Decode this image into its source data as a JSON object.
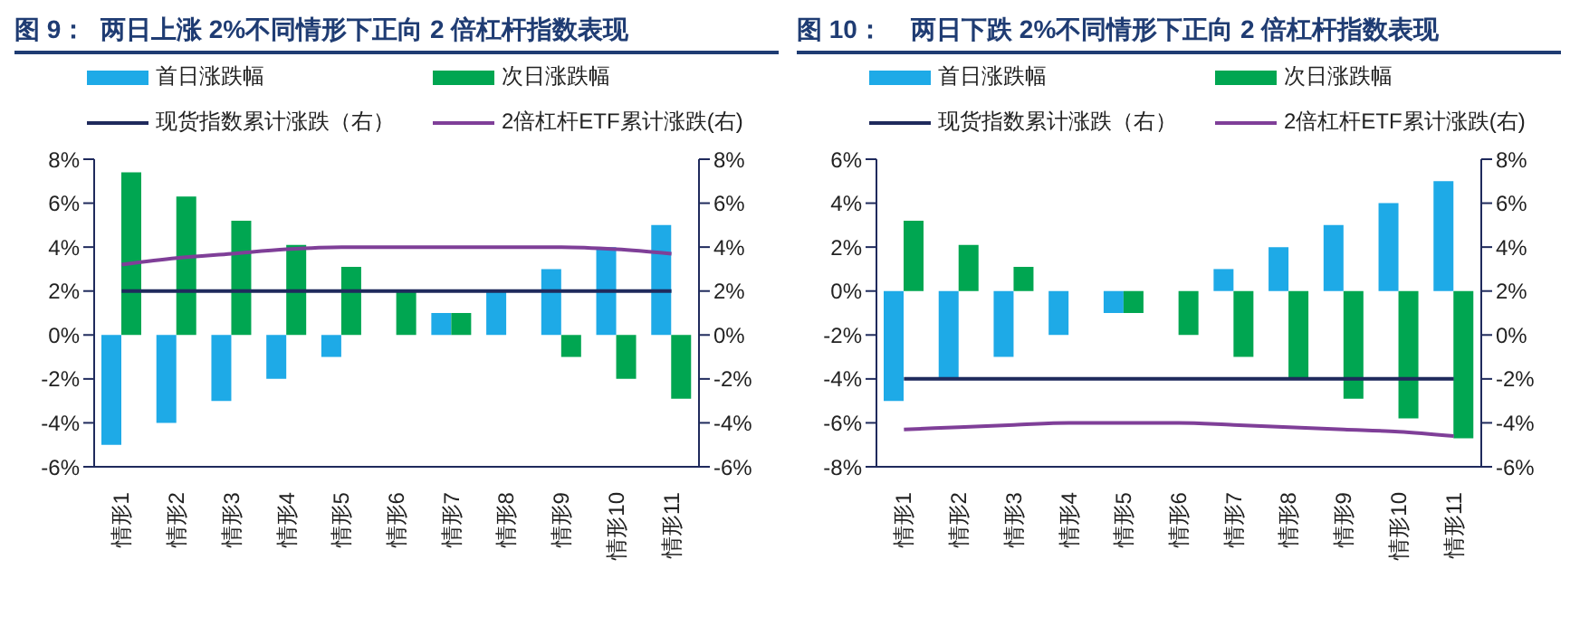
{
  "chart_data": [
    {
      "type": "bar",
      "title": "图 9：  两日上涨 2%不同情形下正向 2 倍杠杆指数表现",
      "legend": "top",
      "categories": [
        "情形1",
        "情形2",
        "情形3",
        "情形4",
        "情形5",
        "情形6",
        "情形7",
        "情形8",
        "情形9",
        "情形10",
        "情形11"
      ],
      "series": [
        {
          "name": "首日涨跌幅",
          "color": "#1eaae7",
          "values": [
            -5,
            -4,
            -3,
            -2,
            -1,
            0,
            1,
            2,
            3,
            4,
            5
          ]
        },
        {
          "name": "次日涨跌幅",
          "color": "#00a651",
          "values": [
            7.4,
            6.3,
            5.2,
            4.1,
            3.1,
            2,
            1,
            0,
            -1,
            -2,
            -2.9
          ]
        },
        {
          "name": "现货指数累计涨跌（右）",
          "type": "line",
          "axis": "y2",
          "color": "#1f2a5c",
          "values": [
            2,
            2,
            2,
            2,
            2,
            2,
            2,
            2,
            2,
            2,
            2
          ]
        },
        {
          "name": "2倍杠杆ETF累计涨跌(右)",
          "type": "line",
          "axis": "y2",
          "color": "#7f3f98",
          "values": [
            3.2,
            3.5,
            3.7,
            3.9,
            4,
            4,
            4,
            4,
            4,
            3.9,
            3.7
          ]
        }
      ],
      "ylim": [
        -6,
        8
      ],
      "yticks": [
        {
          "value": -6,
          "label": "-6%"
        },
        {
          "value": -4,
          "label": "-4%"
        },
        {
          "value": -2,
          "label": "-2%"
        },
        {
          "value": 0,
          "label": "0%"
        },
        {
          "value": 2,
          "label": "2%"
        },
        {
          "value": 4,
          "label": "4%"
        },
        {
          "value": 6,
          "label": "6%"
        },
        {
          "value": 8,
          "label": "8%"
        }
      ],
      "y2lim": [
        -6,
        8
      ],
      "y2ticks": [
        {
          "value": -6,
          "label": "-6%"
        },
        {
          "value": -4,
          "label": "-4%"
        },
        {
          "value": -2,
          "label": "-2%"
        },
        {
          "value": 0,
          "label": "0%"
        },
        {
          "value": 2,
          "label": "2%"
        },
        {
          "value": 4,
          "label": "4%"
        },
        {
          "value": 6,
          "label": "6%"
        },
        {
          "value": 8,
          "label": "8%"
        }
      ]
    },
    {
      "type": "bar",
      "title": "图 10：    两日下跌 2%不同情形下正向 2 倍杠杆指数表现",
      "legend": "top",
      "categories": [
        "情形1",
        "情形2",
        "情形3",
        "情形4",
        "情形5",
        "情形6",
        "情形7",
        "情形8",
        "情形9",
        "情形10",
        "情形11"
      ],
      "series": [
        {
          "name": "首日涨跌幅",
          "color": "#1eaae7",
          "values": [
            -5,
            -4,
            -3,
            -2,
            -1,
            0,
            1,
            2,
            3,
            4,
            5
          ]
        },
        {
          "name": "次日涨跌幅",
          "color": "#00a651",
          "values": [
            3.2,
            2.1,
            1.1,
            0,
            -1,
            -2,
            -3,
            -4,
            -4.9,
            -5.8,
            -6.7
          ]
        },
        {
          "name": "现货指数累计涨跌（右）",
          "type": "line",
          "axis": "y2",
          "color": "#1f2a5c",
          "values": [
            -2,
            -2,
            -2,
            -2,
            -2,
            -2,
            -2,
            -2,
            -2,
            -2,
            -2
          ]
        },
        {
          "name": "2倍杠杆ETF累计涨跌(右)",
          "type": "line",
          "axis": "y2",
          "color": "#7f3f98",
          "values": [
            -4.3,
            -4.2,
            -4.1,
            -4,
            -4,
            -4,
            -4.1,
            -4.2,
            -4.3,
            -4.4,
            -4.6
          ]
        }
      ],
      "ylim": [
        -8,
        6
      ],
      "yticks": [
        {
          "value": -8,
          "label": "-8%"
        },
        {
          "value": -6,
          "label": "-6%"
        },
        {
          "value": -4,
          "label": "-4%"
        },
        {
          "value": -2,
          "label": "-2%"
        },
        {
          "value": 0,
          "label": "0%"
        },
        {
          "value": 2,
          "label": "2%"
        },
        {
          "value": 4,
          "label": "4%"
        },
        {
          "value": 6,
          "label": "6%"
        }
      ],
      "y2lim": [
        -6,
        8
      ],
      "y2ticks": [
        {
          "value": -6,
          "label": "-6%"
        },
        {
          "value": -4,
          "label": "-4%"
        },
        {
          "value": -2,
          "label": "-2%"
        },
        {
          "value": 0,
          "label": "0%"
        },
        {
          "value": 2,
          "label": "2%"
        },
        {
          "value": 4,
          "label": "4%"
        },
        {
          "value": 6,
          "label": "6%"
        },
        {
          "value": 8,
          "label": "8%"
        }
      ]
    }
  ]
}
